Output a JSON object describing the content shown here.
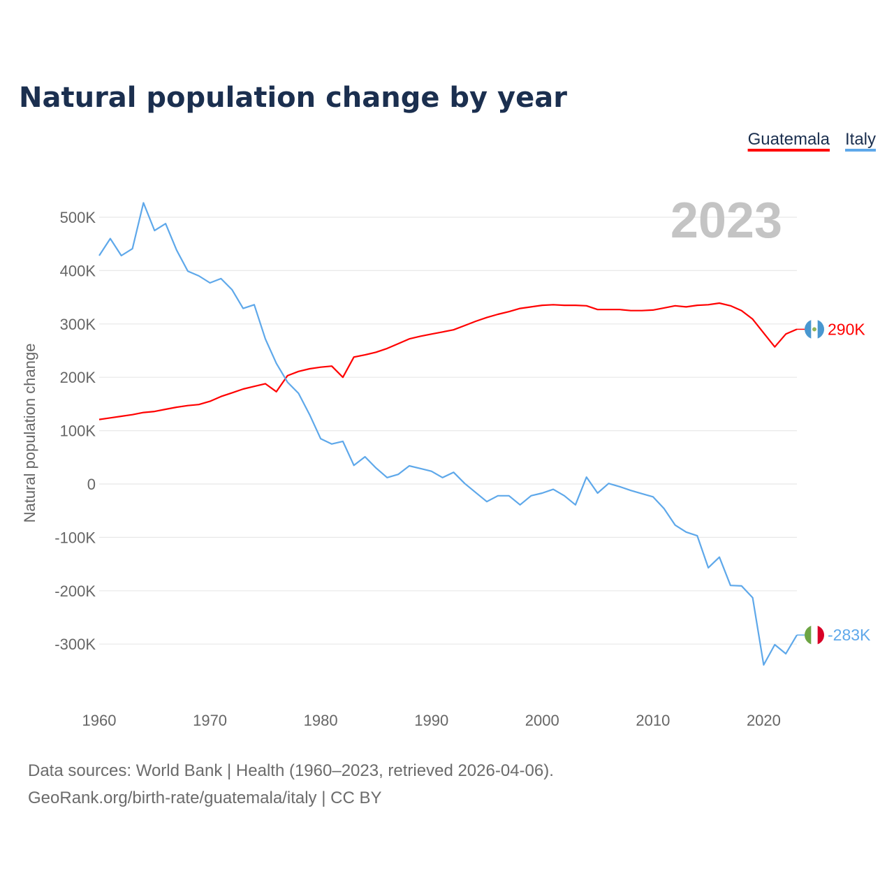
{
  "chart_data": {
    "type": "line",
    "title": "Natural population change by year",
    "ylabel": "Natural population change",
    "xlabel": "",
    "year_label": "2023",
    "xlim": [
      1960,
      2023
    ],
    "ylim": [
      -390,
      560
    ],
    "x_ticks": [
      1960,
      1970,
      1980,
      1990,
      2000,
      2010,
      2020
    ],
    "y_ticks": [
      {
        "v": 500,
        "label": "500K"
      },
      {
        "v": 400,
        "label": "400K"
      },
      {
        "v": 300,
        "label": "300K"
      },
      {
        "v": 200,
        "label": "200K"
      },
      {
        "v": 100,
        "label": "100K"
      },
      {
        "v": 0,
        "label": "0"
      },
      {
        "v": -100,
        "label": "-100K"
      },
      {
        "v": -200,
        "label": "-200K"
      },
      {
        "v": -300,
        "label": "-300K"
      }
    ],
    "units": "thousands",
    "legend_position": "top-right",
    "x_start": 1960,
    "series": [
      {
        "name": "Guatemala",
        "color": "#ff0000",
        "end_label": "290K",
        "flag": "guatemala-flag",
        "values": [
          121,
          124,
          127,
          130,
          134,
          136,
          140,
          144,
          147,
          149,
          155,
          164,
          171,
          178,
          183,
          188,
          173,
          203,
          211,
          216,
          219,
          221,
          200,
          238,
          242,
          247,
          254,
          263,
          272,
          277,
          281,
          285,
          289,
          297,
          305,
          312,
          318,
          323,
          329,
          332,
          335,
          336,
          335,
          335,
          334,
          327,
          327,
          327,
          325,
          325,
          326,
          330,
          334,
          332,
          335,
          336,
          339,
          334,
          325,
          309,
          283,
          257,
          281,
          290
        ]
      },
      {
        "name": "Italy",
        "color": "#5ea8ea",
        "end_label": "-283K",
        "flag": "italy-flag",
        "values": [
          428,
          460,
          428,
          441,
          527,
          475,
          488,
          438,
          399,
          390,
          377,
          385,
          364,
          329,
          336,
          272,
          226,
          191,
          170,
          130,
          85,
          75,
          80,
          35,
          51,
          30,
          12,
          18,
          34,
          29,
          24,
          12,
          22,
          1,
          -16,
          -33,
          -22,
          -22,
          -39,
          -22,
          -17,
          -10,
          -22,
          -39,
          13,
          -17,
          1,
          -5,
          -12,
          -18,
          -24,
          -46,
          -77,
          -90,
          -97,
          -157,
          -137,
          -190,
          -191,
          -213,
          -339,
          -301,
          -318,
          -283
        ]
      }
    ]
  },
  "footer": {
    "line1": "Data sources: World Bank | Health (1960–2023, retrieved 2026-04-06).",
    "line2": "GeoRank.org/birth-rate/guatemala/italy | CC BY"
  }
}
